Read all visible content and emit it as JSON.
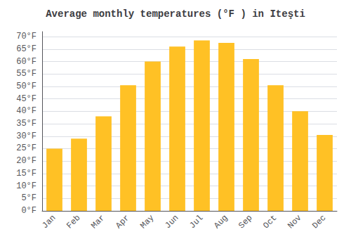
{
  "chart_data": {
    "type": "bar",
    "title": "Average monthly temperatures (°F ) in Iteşti",
    "categories": [
      "Jan",
      "Feb",
      "Mar",
      "Apr",
      "May",
      "Jun",
      "Jul",
      "Aug",
      "Sep",
      "Oct",
      "Nov",
      "Dec"
    ],
    "values": [
      25,
      29,
      38,
      50.5,
      60,
      66,
      68.5,
      67.5,
      61,
      50.5,
      40,
      30.5
    ],
    "color": "#FFC125",
    "ylim": [
      0,
      72
    ],
    "yticks": [
      {
        "value": 0,
        "label": "0°F"
      },
      {
        "value": 5,
        "label": "5°F"
      },
      {
        "value": 10,
        "label": "10°F"
      },
      {
        "value": 15,
        "label": "15°F"
      },
      {
        "value": 20,
        "label": "20°F"
      },
      {
        "value": 25,
        "label": "25°F"
      },
      {
        "value": 30,
        "label": "30°F"
      },
      {
        "value": 35,
        "label": "35°F"
      },
      {
        "value": 40,
        "label": "40°F"
      },
      {
        "value": 45,
        "label": "45°F"
      },
      {
        "value": 50,
        "label": "50°F"
      },
      {
        "value": 55,
        "label": "55°F"
      },
      {
        "value": 60,
        "label": "60°F"
      },
      {
        "value": 65,
        "label": "65°F"
      },
      {
        "value": 70,
        "label": "70°F"
      }
    ],
    "grid": true
  }
}
